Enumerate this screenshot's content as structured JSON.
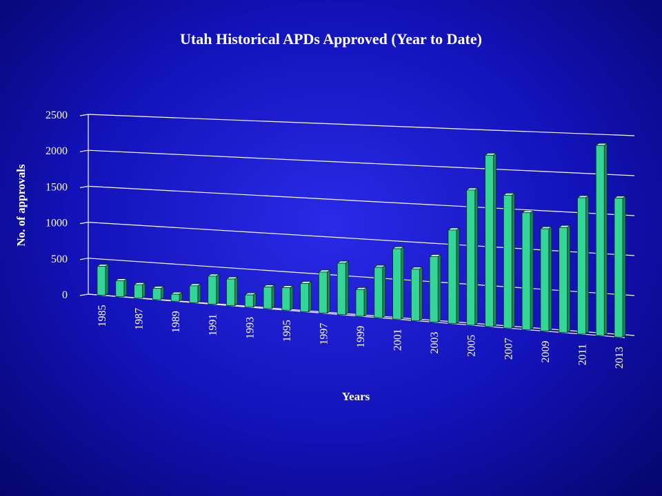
{
  "chart_data": {
    "type": "bar",
    "title": "Utah Historical APDs Approved (Year to Date)",
    "xlabel": "Years",
    "ylabel": "No. of approvals",
    "ylim": [
      0,
      2500
    ],
    "yticks": [
      0,
      500,
      1000,
      1500,
      2000,
      2500
    ],
    "x_tick_labels": [
      "1985",
      "1987",
      "1989",
      "1991",
      "1993",
      "1995",
      "1997",
      "1999",
      "2001",
      "2003",
      "2005",
      "2007",
      "2009",
      "2011",
      "2013"
    ],
    "categories": [
      "1985",
      "1986",
      "1987",
      "1988",
      "1989",
      "1990",
      "1991",
      "1992",
      "1993",
      "1994",
      "1995",
      "1996",
      "1997",
      "1998",
      "1999",
      "2000",
      "2001",
      "2002",
      "2003",
      "2004",
      "2005",
      "2006",
      "2007",
      "2008",
      "2009",
      "2010",
      "2011",
      "2012",
      "2013"
    ],
    "values": [
      400,
      220,
      185,
      155,
      95,
      230,
      380,
      360,
      165,
      290,
      300,
      375,
      545,
      680,
      350,
      660,
      920,
      670,
      850,
      1210,
      1740,
      2200,
      1700,
      1490,
      1300,
      1330,
      1720,
      2390,
      1740
    ],
    "bar_color": "#33d696",
    "grid": true,
    "legend": "none"
  }
}
